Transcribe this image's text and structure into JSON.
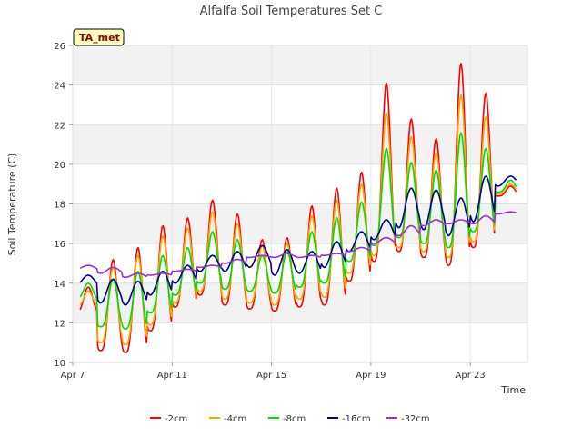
{
  "chart_data": {
    "type": "line",
    "title": "Alfalfa Soil Temperatures Set C",
    "xlabel": "Time",
    "ylabel": "Soil Temperature (C)",
    "ylim": [
      10,
      26
    ],
    "yticks": [
      10,
      12,
      14,
      16,
      18,
      20,
      22,
      24,
      26
    ],
    "xlim_days": [
      7,
      25.3
    ],
    "xticks": [
      {
        "day": 7,
        "label": "Apr 7"
      },
      {
        "day": 11,
        "label": "Apr 11"
      },
      {
        "day": 15,
        "label": "Apr 15"
      },
      {
        "day": 19,
        "label": "Apr 19"
      },
      {
        "day": 23,
        "label": "Apr 23"
      }
    ],
    "badge": "TA_met",
    "grid": true,
    "legend_position": "bottom",
    "series": [
      {
        "name": "-2cm",
        "color": "#ff0000",
        "daily_min": [
          12.5,
          10.6,
          10.5,
          11.6,
          12.8,
          13.4,
          12.9,
          12.7,
          12.6,
          12.8,
          12.9,
          14.1,
          15.1,
          15.6,
          15.3,
          14.9,
          15.8,
          18.4
        ],
        "daily_max": [
          13.8,
          15.2,
          15.8,
          16.9,
          17.3,
          18.2,
          17.5,
          16.2,
          16.3,
          17.9,
          18.8,
          19.6,
          24.1,
          22.3,
          21.3,
          25.1,
          23.6,
          18.9
        ]
      },
      {
        "name": "-4cm",
        "color": "#ffa500",
        "daily_min": [
          12.8,
          11.0,
          10.9,
          11.9,
          13.0,
          13.6,
          13.2,
          13.0,
          12.9,
          13.2,
          13.3,
          14.5,
          15.4,
          15.8,
          15.6,
          15.3,
          16.1,
          18.5
        ],
        "daily_max": [
          13.6,
          14.8,
          15.4,
          16.4,
          16.8,
          17.6,
          17.0,
          15.9,
          16.0,
          17.4,
          18.2,
          19.0,
          22.6,
          21.4,
          20.6,
          23.5,
          22.4,
          19.0
        ]
      },
      {
        "name": "-8cm",
        "color": "#00dd00",
        "daily_min": [
          13.2,
          11.8,
          11.7,
          12.5,
          13.4,
          14.0,
          13.7,
          13.6,
          13.5,
          13.8,
          14.0,
          15.1,
          15.9,
          16.3,
          16.0,
          15.8,
          16.6,
          18.6
        ],
        "daily_max": [
          14.0,
          14.2,
          14.6,
          15.4,
          15.8,
          16.6,
          16.2,
          15.4,
          15.6,
          16.6,
          17.3,
          18.1,
          20.8,
          20.1,
          19.7,
          21.6,
          20.8,
          19.2
        ]
      },
      {
        "name": "-16cm",
        "color": "#00008b",
        "daily_min": [
          13.9,
          13.0,
          12.9,
          13.4,
          14.0,
          14.6,
          14.6,
          14.8,
          14.4,
          14.5,
          14.8,
          15.6,
          16.2,
          16.8,
          16.7,
          16.4,
          17.1,
          18.9
        ],
        "daily_max": [
          14.4,
          14.2,
          14.1,
          14.6,
          14.9,
          15.4,
          15.6,
          15.9,
          15.7,
          15.6,
          16.1,
          16.6,
          17.2,
          18.8,
          18.7,
          18.3,
          19.4,
          19.4
        ]
      },
      {
        "name": "-32cm",
        "color": "#9932cc",
        "daily_min": [
          14.7,
          14.5,
          14.3,
          14.4,
          14.6,
          14.8,
          15.0,
          15.3,
          15.3,
          15.3,
          15.4,
          15.6,
          16.0,
          16.4,
          16.9,
          17.0,
          17.0,
          17.5
        ],
        "daily_max": [
          14.9,
          14.8,
          14.5,
          14.5,
          14.7,
          14.9,
          15.2,
          15.4,
          15.5,
          15.4,
          15.5,
          15.8,
          16.3,
          16.9,
          17.2,
          17.2,
          17.4,
          17.6
        ]
      }
    ]
  }
}
